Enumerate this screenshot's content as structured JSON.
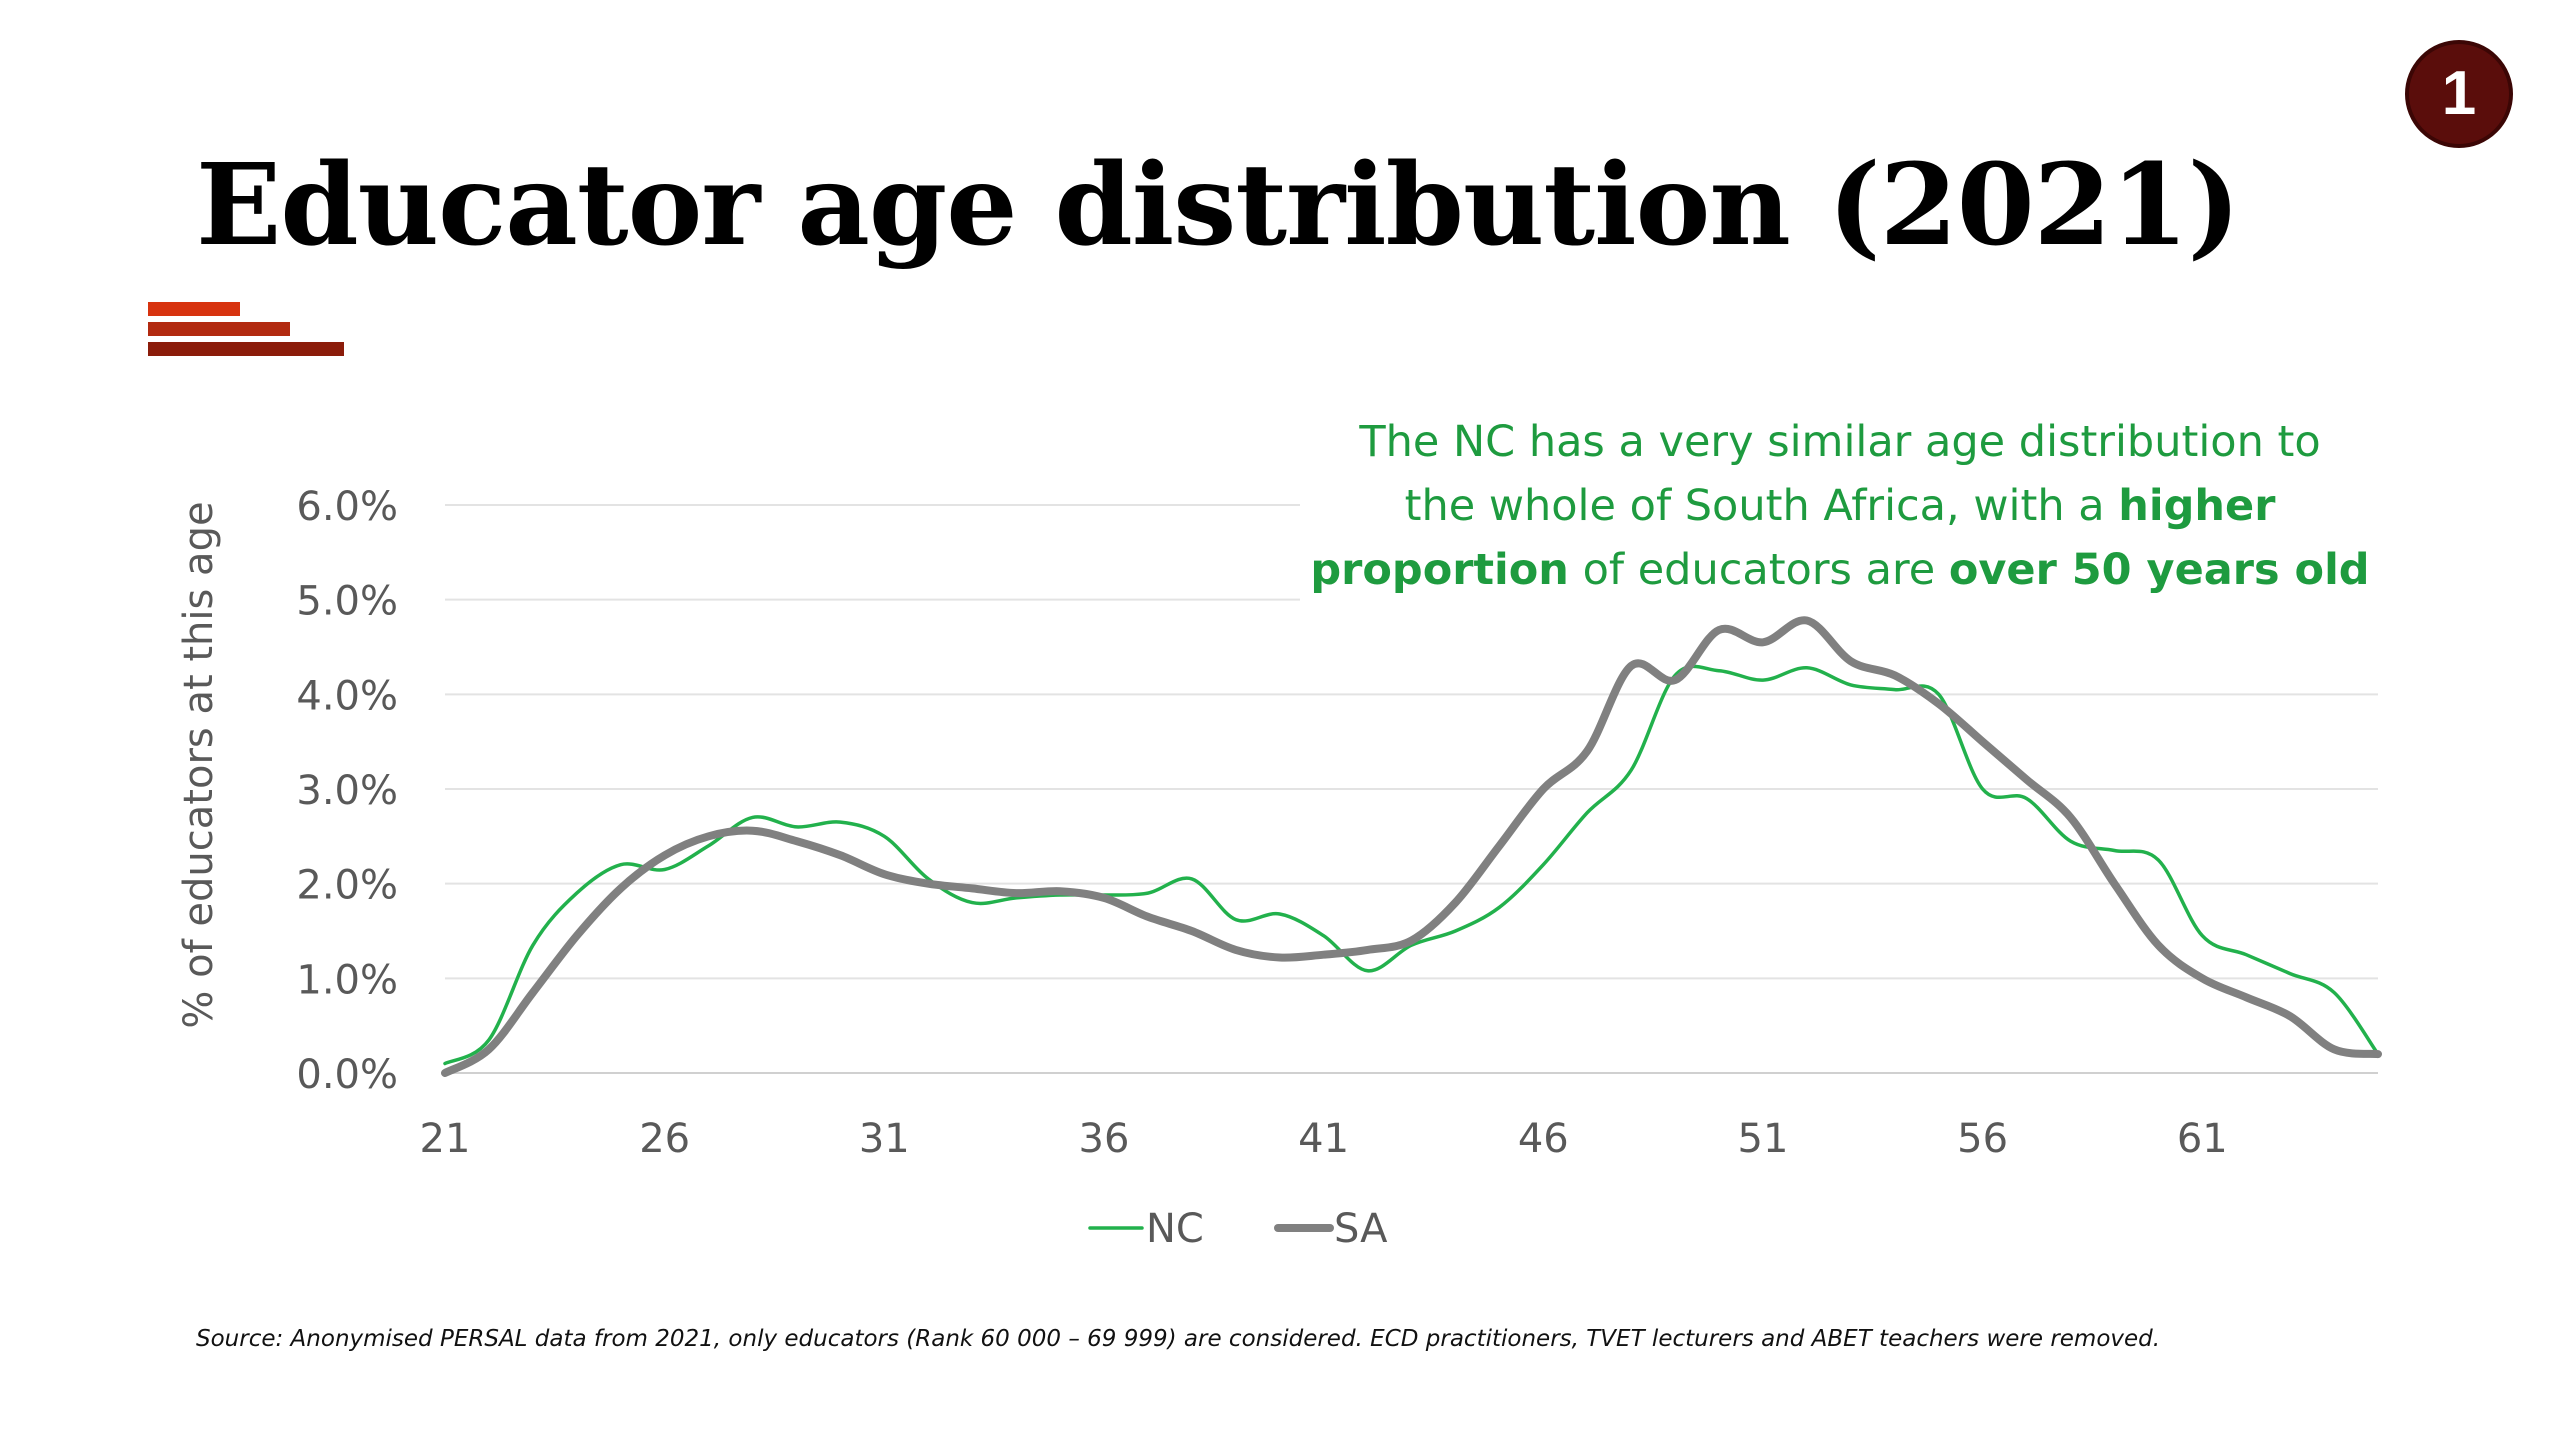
{
  "page_number": "1",
  "title": "Educator age distribution (2021)",
  "colors": {
    "badge": "#5a0d0b",
    "accent_bars": [
      "#d7330f",
      "#b22a10",
      "#8b1c0a"
    ],
    "NC": "#22b14c",
    "SA": "#808080",
    "annotation_text": "#1e9b3f"
  },
  "annotation": {
    "line1": "The NC has a very similar age distribution to",
    "line2_pre": "the whole of South Africa, with a ",
    "line2_bold": "higher",
    "line3_bold_a": "proportion",
    "line3_mid": " of educators are ",
    "line3_bold_b": "over 50 years old"
  },
  "chart_data": {
    "type": "line",
    "ylabel": "% of educators at this age",
    "xlabel": "",
    "x_ticks": [
      21,
      26,
      31,
      36,
      41,
      46,
      51,
      56,
      61
    ],
    "y_ticks": [
      "0.0%",
      "1.0%",
      "2.0%",
      "3.0%",
      "4.0%",
      "5.0%",
      "6.0%"
    ],
    "xlim": [
      21,
      65
    ],
    "ylim": [
      0,
      6
    ],
    "grid": "horizontal",
    "legend_position": "bottom",
    "x": [
      21,
      22,
      23,
      24,
      25,
      26,
      27,
      28,
      29,
      30,
      31,
      32,
      33,
      34,
      35,
      36,
      37,
      38,
      39,
      40,
      41,
      42,
      43,
      44,
      45,
      46,
      47,
      48,
      49,
      50,
      51,
      52,
      53,
      54,
      55,
      56,
      57,
      58,
      59,
      60,
      61,
      62,
      63,
      64,
      65
    ],
    "series": [
      {
        "name": "NC",
        "values": [
          0.1,
          0.35,
          1.35,
          1.9,
          2.2,
          2.15,
          2.4,
          2.7,
          2.6,
          2.65,
          2.5,
          2.05,
          1.8,
          1.85,
          1.88,
          1.88,
          1.9,
          2.05,
          1.62,
          1.68,
          1.45,
          1.08,
          1.35,
          1.5,
          1.75,
          2.2,
          2.75,
          3.2,
          4.2,
          4.25,
          4.15,
          4.28,
          4.1,
          4.05,
          4.0,
          3.0,
          2.9,
          2.45,
          2.35,
          2.25,
          1.45,
          1.25,
          1.05,
          0.85,
          0.2
        ]
      },
      {
        "name": "SA",
        "values": [
          0.0,
          0.25,
          0.85,
          1.45,
          1.95,
          2.3,
          2.5,
          2.56,
          2.45,
          2.3,
          2.1,
          2.0,
          1.95,
          1.9,
          1.92,
          1.85,
          1.65,
          1.5,
          1.3,
          1.22,
          1.25,
          1.3,
          1.4,
          1.8,
          2.4,
          3.0,
          3.4,
          4.3,
          4.15,
          4.68,
          4.55,
          4.78,
          4.35,
          4.2,
          3.9,
          3.5,
          3.1,
          2.7,
          2.0,
          1.35,
          1.0,
          0.8,
          0.6,
          0.25,
          0.2
        ]
      }
    ]
  },
  "source": "Source: Anonymised PERSAL data from 2021, only educators (Rank 60 000 – 69 999) are considered. ECD practitioners, TVET lecturers and ABET teachers were removed."
}
